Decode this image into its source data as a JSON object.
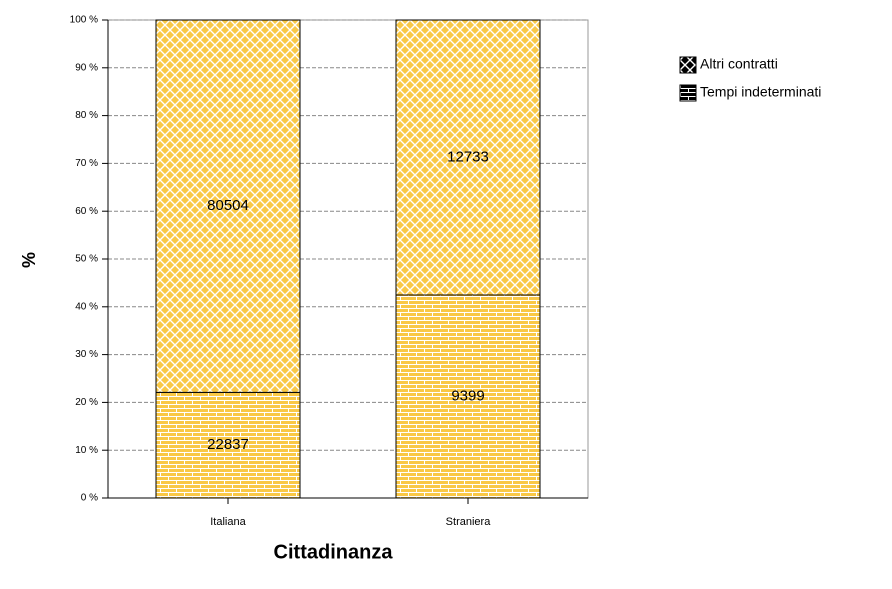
{
  "chart_data": {
    "type": "bar",
    "stacking": "percent",
    "xlabel": "Cittadinanza",
    "ylabel": "%",
    "categories": [
      "Italiana",
      "Straniera"
    ],
    "series": [
      {
        "name": "Tempi indeterminati",
        "color": "#f9c846",
        "values": [
          22837,
          9399
        ]
      },
      {
        "name": "Altri contratti",
        "color": "#f9c846",
        "values": [
          80504,
          12733
        ]
      }
    ],
    "ylim": [
      0,
      100
    ],
    "yticks": [
      {
        "value": 0,
        "label": "0 %"
      },
      {
        "value": 10,
        "label": "10 %"
      },
      {
        "value": 20,
        "label": "20 %"
      },
      {
        "value": 30,
        "label": "30 %"
      },
      {
        "value": 40,
        "label": "40 %"
      },
      {
        "value": 50,
        "label": "50 %"
      },
      {
        "value": 60,
        "label": "60 %"
      },
      {
        "value": 70,
        "label": "70 %"
      },
      {
        "value": 80,
        "label": "80 %"
      },
      {
        "value": 90,
        "label": "90 %"
      },
      {
        "value": 100,
        "label": "100 %"
      }
    ],
    "grid": true,
    "legend": "right"
  }
}
